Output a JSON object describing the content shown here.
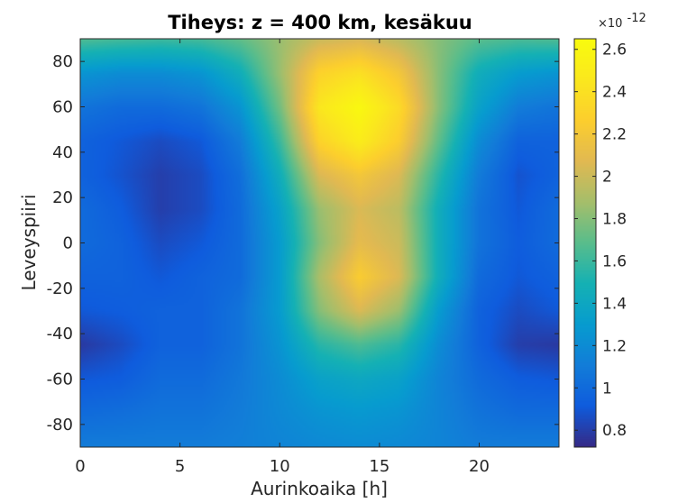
{
  "chart_data": {
    "type": "heatmap",
    "title": "Tiheys: z = 400 km, kesäkuu",
    "xlabel": "Aurinkoaika [h]",
    "ylabel": "Leveyspiiri",
    "xlim": [
      0,
      24
    ],
    "ylim": [
      -90,
      90
    ],
    "x_ticks": [
      0,
      5,
      10,
      15,
      20
    ],
    "y_ticks": [
      -80,
      -60,
      -40,
      -20,
      0,
      20,
      40,
      60,
      80
    ],
    "colorbar": {
      "colormap": "parula",
      "range": [
        0.72,
        2.65
      ],
      "ticks": [
        0.8,
        1,
        1.2,
        1.4,
        1.6,
        1.8,
        2,
        2.2,
        2.4,
        2.6
      ],
      "tick_labels": [
        "0.8",
        "1",
        "1.2",
        "1.4",
        "1.6",
        "1.8",
        "2",
        "2.2",
        "2.4",
        "2.6"
      ],
      "exponent_base": "×10",
      "exponent_power": "-12"
    },
    "x_grid": [
      0,
      2,
      4,
      6,
      8,
      10,
      12,
      14,
      16,
      18,
      20,
      22,
      24
    ],
    "y_grid": [
      90,
      75,
      60,
      45,
      30,
      15,
      0,
      -15,
      -30,
      -45,
      -60,
      -75,
      -90
    ],
    "z": [
      [
        1.65,
        1.62,
        1.6,
        1.62,
        1.7,
        1.85,
        2.0,
        2.05,
        1.95,
        1.8,
        1.68,
        1.64,
        1.65
      ],
      [
        1.25,
        1.2,
        1.2,
        1.25,
        1.45,
        1.85,
        2.3,
        2.4,
        2.2,
        1.8,
        1.45,
        1.3,
        1.25
      ],
      [
        1.05,
        1.0,
        1.0,
        1.05,
        1.25,
        1.75,
        2.45,
        2.62,
        2.35,
        1.8,
        1.35,
        1.1,
        1.05
      ],
      [
        0.95,
        0.9,
        0.85,
        0.9,
        1.1,
        1.6,
        2.3,
        2.5,
        2.25,
        1.7,
        1.2,
        0.95,
        0.95
      ],
      [
        0.95,
        0.88,
        0.8,
        0.85,
        1.02,
        1.45,
        2.05,
        2.2,
        2.05,
        1.55,
        1.1,
        0.88,
        0.95
      ],
      [
        1.0,
        0.92,
        0.8,
        0.85,
        1.0,
        1.35,
        1.85,
        2.05,
        1.95,
        1.45,
        1.05,
        0.9,
        1.0
      ],
      [
        1.0,
        0.95,
        0.85,
        0.9,
        1.0,
        1.3,
        1.8,
        2.1,
        2.0,
        1.45,
        1.05,
        0.92,
        1.0
      ],
      [
        0.95,
        0.95,
        0.9,
        0.95,
        1.0,
        1.3,
        1.9,
        2.25,
        2.05,
        1.45,
        1.0,
        0.9,
        0.95
      ],
      [
        0.9,
        0.92,
        0.95,
        0.95,
        1.05,
        1.3,
        1.8,
        2.05,
        1.85,
        1.3,
        0.95,
        0.85,
        0.9
      ],
      [
        0.78,
        0.85,
        0.95,
        0.95,
        1.05,
        1.25,
        1.55,
        1.65,
        1.55,
        1.2,
        0.95,
        0.8,
        0.78
      ],
      [
        0.9,
        0.92,
        1.0,
        1.0,
        1.08,
        1.2,
        1.35,
        1.4,
        1.35,
        1.15,
        1.0,
        0.92,
        0.9
      ],
      [
        1.0,
        1.02,
        1.05,
        1.05,
        1.1,
        1.18,
        1.25,
        1.28,
        1.25,
        1.15,
        1.05,
        1.0,
        1.0
      ],
      [
        1.1,
        1.1,
        1.1,
        1.1,
        1.12,
        1.15,
        1.18,
        1.2,
        1.18,
        1.15,
        1.1,
        1.1,
        1.1
      ]
    ]
  }
}
